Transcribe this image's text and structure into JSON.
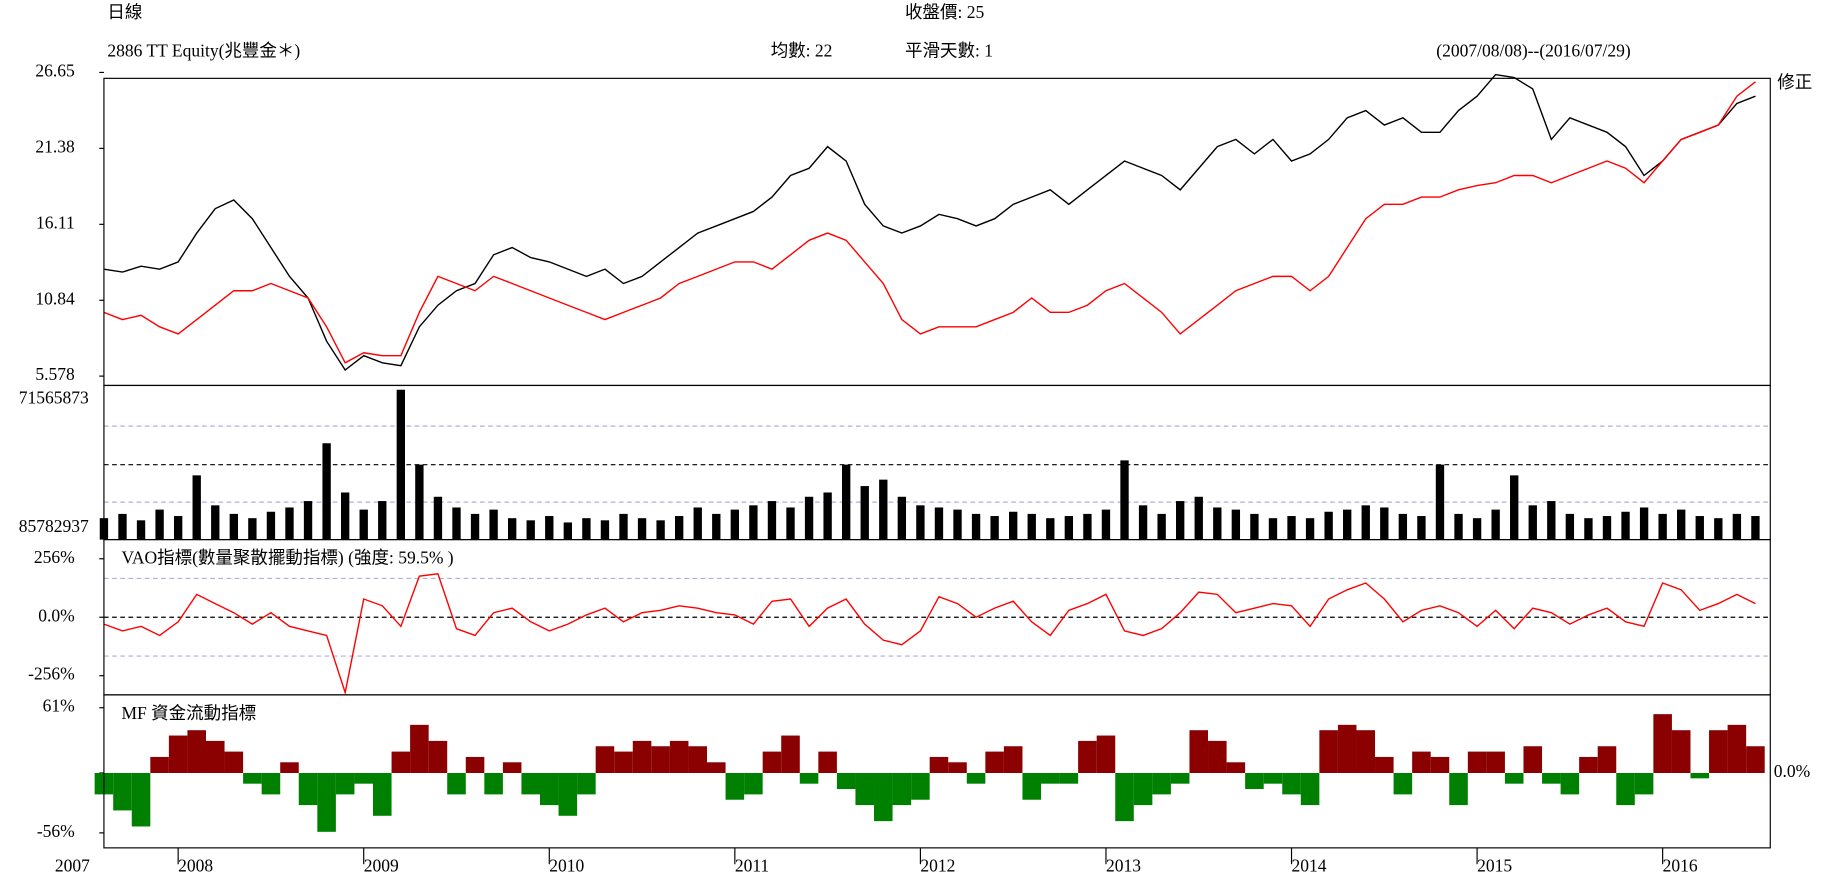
{
  "chart_data": {
    "header": {
      "period": "日線",
      "ticker": "2886 TT Equity(兆豐金＊)",
      "average": "均數: 22",
      "close": "收盤價: 25",
      "smoothing": "平滑天數: 1",
      "range": "(2007/08/08)--(2016/07/29)"
    },
    "xlim": [
      2007.6,
      2016.58
    ],
    "xticks": [
      2007,
      2008,
      2009,
      2010,
      2011,
      2012,
      2013,
      2014,
      2015,
      2016
    ],
    "x": [
      2007.6,
      2007.7,
      2007.8,
      2007.9,
      2008.0,
      2008.1,
      2008.2,
      2008.3,
      2008.4,
      2008.5,
      2008.6,
      2008.7,
      2008.8,
      2008.9,
      2009.0,
      2009.1,
      2009.2,
      2009.3,
      2009.4,
      2009.5,
      2009.6,
      2009.7,
      2009.8,
      2009.9,
      2010.0,
      2010.1,
      2010.2,
      2010.3,
      2010.4,
      2010.5,
      2010.6,
      2010.7,
      2010.8,
      2010.9,
      2011.0,
      2011.1,
      2011.2,
      2011.3,
      2011.4,
      2011.5,
      2011.6,
      2011.7,
      2011.8,
      2011.9,
      2012.0,
      2012.1,
      2012.2,
      2012.3,
      2012.4,
      2012.5,
      2012.6,
      2012.7,
      2012.8,
      2012.9,
      2013.0,
      2013.1,
      2013.2,
      2013.3,
      2013.4,
      2013.5,
      2013.6,
      2013.7,
      2013.8,
      2013.9,
      2014.0,
      2014.1,
      2014.2,
      2014.3,
      2014.4,
      2014.5,
      2014.6,
      2014.7,
      2014.8,
      2014.9,
      2015.0,
      2015.1,
      2015.2,
      2015.3,
      2015.4,
      2015.5,
      2015.6,
      2015.7,
      2015.8,
      2015.9,
      2016.0,
      2016.1,
      2016.2,
      2016.3,
      2016.4,
      2016.5
    ],
    "panels": [
      {
        "type": "line",
        "ylim": [
          4.93,
          26.24
        ],
        "yticks": [
          5.578,
          10.84,
          16.11,
          21.38,
          26.65
        ],
        "series": [
          {
            "color": "#000000",
            "values": [
              13.0,
              12.8,
              13.2,
              13.0,
              13.5,
              15.5,
              17.2,
              17.8,
              16.5,
              14.5,
              12.5,
              11.0,
              8.0,
              6.0,
              7.0,
              6.5,
              6.3,
              9.0,
              10.5,
              11.5,
              12.0,
              14.0,
              14.5,
              13.8,
              13.5,
              13.0,
              12.5,
              13.0,
              12.0,
              12.5,
              13.5,
              14.5,
              15.5,
              16.0,
              16.5,
              17.0,
              18.0,
              19.5,
              20.0,
              21.5,
              20.5,
              17.5,
              16.0,
              15.5,
              16.0,
              16.8,
              16.5,
              16.0,
              16.5,
              17.5,
              18.0,
              18.5,
              17.5,
              18.5,
              19.5,
              20.5,
              20.0,
              19.5,
              18.5,
              20.0,
              21.5,
              22.0,
              21.0,
              22.0,
              20.5,
              21.0,
              22.0,
              23.5,
              24.0,
              23.0,
              23.5,
              22.5,
              22.5,
              24.0,
              25.0,
              26.5,
              26.3,
              25.5,
              22.0,
              23.5,
              23.0,
              22.5,
              21.5,
              19.5,
              20.5,
              22.0,
              22.5,
              23.0,
              24.5,
              25.0
            ]
          },
          {
            "name": "修正",
            "color": "#ff0000",
            "values": [
              10.0,
              9.5,
              9.8,
              9.0,
              8.5,
              9.5,
              10.5,
              11.5,
              11.5,
              12.0,
              11.5,
              11.0,
              9.0,
              6.5,
              7.2,
              7.0,
              7.0,
              10.0,
              12.5,
              12.0,
              11.5,
              12.5,
              12.0,
              11.5,
              11.0,
              10.5,
              10.0,
              9.5,
              10.0,
              10.5,
              11.0,
              12.0,
              12.5,
              13.0,
              13.5,
              13.5,
              13.0,
              14.0,
              15.0,
              15.5,
              15.0,
              13.5,
              12.0,
              9.5,
              8.5,
              9.0,
              9.0,
              9.0,
              9.5,
              10.0,
              11.0,
              10.0,
              10.0,
              10.5,
              11.5,
              12.0,
              11.0,
              10.0,
              8.5,
              9.5,
              10.5,
              11.5,
              12.0,
              12.5,
              12.5,
              11.5,
              12.5,
              14.5,
              16.5,
              17.5,
              17.5,
              18.0,
              18.0,
              18.5,
              18.8,
              19.0,
              19.5,
              19.5,
              19.0,
              19.5,
              20.0,
              20.5,
              20.0,
              19.0,
              20.5,
              22.0,
              22.5,
              23.0,
              25.0,
              26.0
            ]
          }
        ]
      },
      {
        "type": "bar",
        "ylim": [
          0,
          72000000
        ],
        "labels": [
          "71565873",
          "85782937"
        ],
        "grid_lines": [
          17500000,
          35000000,
          53000000
        ],
        "color": "#000000",
        "values": [
          10000000,
          12000000,
          9000000,
          14000000,
          11000000,
          30000000,
          16000000,
          12000000,
          10000000,
          13000000,
          15000000,
          18000000,
          45000000,
          22000000,
          14000000,
          18000000,
          70000000,
          35000000,
          20000000,
          15000000,
          12000000,
          14000000,
          10000000,
          9000000,
          11000000,
          8000000,
          10000000,
          9000000,
          12000000,
          10000000,
          9000000,
          11000000,
          15000000,
          12000000,
          14000000,
          16000000,
          18000000,
          15000000,
          20000000,
          22000000,
          35000000,
          25000000,
          28000000,
          20000000,
          16000000,
          15000000,
          14000000,
          12000000,
          11000000,
          13000000,
          12000000,
          10000000,
          11000000,
          12000000,
          14000000,
          37000000,
          16000000,
          12000000,
          18000000,
          20000000,
          15000000,
          14000000,
          12000000,
          10000000,
          11000000,
          10000000,
          13000000,
          14000000,
          16000000,
          15000000,
          12000000,
          11000000,
          35000000,
          12000000,
          10000000,
          14000000,
          30000000,
          16000000,
          18000000,
          12000000,
          10000000,
          11000000,
          13000000,
          15000000,
          12000000,
          14000000,
          11000000,
          10000000,
          12000000,
          11000000
        ]
      },
      {
        "type": "line",
        "title": "VAO指標(數量聚散擺動指標) (強度: 59.5% )",
        "ylim": [
          -340,
          340
        ],
        "yticks": [
          {
            "value": 256,
            "label": "256%"
          },
          {
            "value": 0,
            "label": "0.0%"
          },
          {
            "value": -256,
            "label": "-256%"
          }
        ],
        "grid_lines": [
          170,
          0,
          -170
        ],
        "series": [
          {
            "color": "#ff0000",
            "values": [
              -30,
              -60,
              -40,
              -80,
              -20,
              100,
              60,
              20,
              -30,
              20,
              -40,
              -60,
              -80,
              -330,
              80,
              50,
              -40,
              180,
              190,
              -50,
              -80,
              20,
              40,
              -20,
              -60,
              -30,
              10,
              40,
              -20,
              20,
              30,
              50,
              40,
              20,
              10,
              -30,
              70,
              80,
              -40,
              40,
              80,
              -30,
              -100,
              -120,
              -60,
              90,
              60,
              0,
              40,
              70,
              -20,
              -80,
              30,
              60,
              100,
              -60,
              -80,
              -50,
              20,
              110,
              100,
              20,
              40,
              60,
              50,
              -40,
              80,
              120,
              150,
              80,
              -20,
              30,
              50,
              20,
              -40,
              30,
              -50,
              40,
              20,
              -30,
              10,
              40,
              -20,
              -40,
              150,
              120,
              30,
              60,
              100,
              60
            ]
          }
        ]
      },
      {
        "type": "bar",
        "title": "MF 資金流動指標",
        "ylim": [
          -70,
          73
        ],
        "yticks": [
          {
            "value": 61,
            "label": "61%"
          },
          {
            "value": 0,
            "label": "0.0%"
          },
          {
            "value": -56,
            "label": "-56%"
          }
        ],
        "colors": {
          "positive": "#8b0000",
          "negative": "#008000"
        },
        "values": [
          -20,
          -35,
          -50,
          15,
          35,
          40,
          30,
          20,
          -10,
          -20,
          10,
          -30,
          -55,
          -20,
          -10,
          -40,
          20,
          45,
          30,
          -20,
          15,
          -20,
          10,
          -20,
          -30,
          -40,
          -20,
          25,
          20,
          30,
          25,
          30,
          25,
          10,
          -25,
          -20,
          20,
          35,
          -10,
          20,
          -15,
          -30,
          -45,
          -30,
          -25,
          15,
          10,
          -10,
          20,
          25,
          -25,
          -10,
          -10,
          30,
          35,
          -45,
          -30,
          -20,
          -10,
          40,
          30,
          10,
          -15,
          -10,
          -20,
          -30,
          40,
          45,
          40,
          15,
          -20,
          20,
          15,
          -30,
          20,
          20,
          -10,
          25,
          -10,
          -20,
          15,
          25,
          -30,
          -20,
          55,
          40,
          -5,
          40,
          45,
          25
        ]
      }
    ]
  }
}
